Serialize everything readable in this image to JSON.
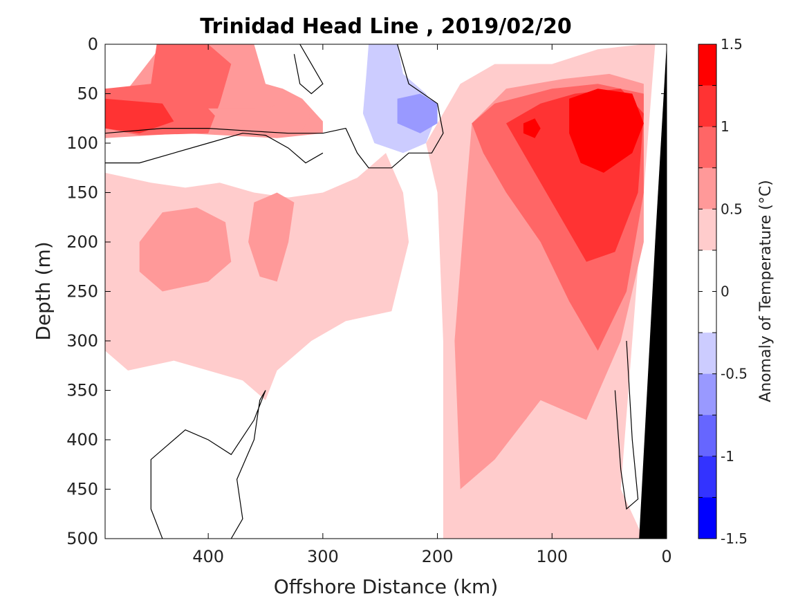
{
  "chart_data": {
    "type": "heatmap",
    "title": "Trinidad Head Line , 2019/02/20",
    "xlabel": "Offshore Distance (km)",
    "ylabel": "Depth (m)",
    "colorbar_label": "Anomaly of Temperature (°C)",
    "x_direction": "reversed",
    "y_direction": "reversed",
    "xlim": [
      0,
      490
    ],
    "ylim": [
      0,
      500
    ],
    "xticks": [
      400,
      300,
      200,
      100,
      0
    ],
    "xtick_labels": [
      "400",
      "300",
      "200",
      "100",
      "0"
    ],
    "yticks": [
      0,
      50,
      100,
      150,
      200,
      250,
      300,
      350,
      400,
      450,
      500
    ],
    "ytick_labels": [
      "0",
      "50",
      "100",
      "150",
      "200",
      "250",
      "300",
      "350",
      "400",
      "450",
      "500"
    ],
    "colorbar": {
      "range": [
        -1.5,
        1.5
      ],
      "step": 0.25,
      "tick_values": [
        1.5,
        1,
        0.5,
        0,
        -0.5,
        -1,
        -1.5
      ],
      "tick_labels": [
        "1.5",
        "1",
        "0.5",
        "0",
        "-0.5",
        "-1",
        "-1.5"
      ],
      "colors_high_to_low": [
        "#ff0000",
        "#ff3333",
        "#ff6666",
        "#ff9999",
        "#ffcccc",
        "#ffffff",
        "#ffffff",
        "#ccccff",
        "#9999ff",
        "#6666ff",
        "#3333ff",
        "#0000ff"
      ]
    },
    "bathymetry_color": "#000000",
    "contour_zero_color": "#000000",
    "regions": [
      {
        "level": 0.5,
        "label": "northwest shallow warm patch",
        "points": [
          [
            490,
            85
          ],
          [
            470,
            45
          ],
          [
            440,
            0
          ],
          [
            360,
            0
          ],
          [
            350,
            40
          ],
          [
            335,
            45
          ],
          [
            318,
            55
          ],
          [
            300,
            78
          ],
          [
            300,
            90
          ],
          [
            340,
            95
          ],
          [
            420,
            90
          ],
          [
            490,
            95
          ]
        ]
      },
      {
        "level": 0.75,
        "label": "northwest warm core",
        "points": [
          [
            490,
            85
          ],
          [
            490,
            45
          ],
          [
            450,
            40
          ],
          [
            445,
            0
          ],
          [
            400,
            0
          ],
          [
            380,
            20
          ],
          [
            390,
            60
          ],
          [
            400,
            90
          ],
          [
            460,
            92
          ]
        ]
      },
      {
        "level": 1.0,
        "label": "northwest peak",
        "points": [
          [
            490,
            85
          ],
          [
            490,
            55
          ],
          [
            440,
            60
          ],
          [
            430,
            78
          ],
          [
            460,
            90
          ]
        ]
      },
      {
        "level": 0.25,
        "label": "broad mid-depth warm layer",
        "points": [
          [
            490,
            130
          ],
          [
            450,
            140
          ],
          [
            420,
            145
          ],
          [
            390,
            140
          ],
          [
            360,
            150
          ],
          [
            330,
            155
          ],
          [
            300,
            150
          ],
          [
            270,
            135
          ],
          [
            245,
            110
          ],
          [
            230,
            150
          ],
          [
            225,
            200
          ],
          [
            240,
            270
          ],
          [
            280,
            280
          ],
          [
            310,
            300
          ],
          [
            340,
            330
          ],
          [
            350,
            360
          ],
          [
            370,
            340
          ],
          [
            400,
            330
          ],
          [
            430,
            320
          ],
          [
            470,
            330
          ],
          [
            490,
            310
          ]
        ]
      },
      {
        "level": 0.5,
        "label": "mid-depth warm blob west",
        "points": [
          [
            460,
            200
          ],
          [
            440,
            170
          ],
          [
            410,
            165
          ],
          [
            385,
            180
          ],
          [
            380,
            220
          ],
          [
            400,
            240
          ],
          [
            440,
            250
          ],
          [
            460,
            230
          ]
        ]
      },
      {
        "level": 0.5,
        "label": "mid-depth warm blob east",
        "points": [
          [
            360,
            160
          ],
          [
            340,
            150
          ],
          [
            325,
            160
          ],
          [
            330,
            200
          ],
          [
            340,
            240
          ],
          [
            355,
            235
          ],
          [
            365,
            200
          ]
        ]
      },
      {
        "level": 0.5,
        "label": "mid-shallow warm band",
        "points": [
          [
            400,
            65
          ],
          [
            360,
            65
          ],
          [
            330,
            60
          ],
          [
            310,
            72
          ],
          [
            320,
            90
          ],
          [
            380,
            90
          ]
        ]
      },
      {
        "level": -0.25,
        "label": "central cool lens",
        "points": [
          [
            260,
            0
          ],
          [
            235,
            0
          ],
          [
            230,
            30
          ],
          [
            210,
            50
          ],
          [
            200,
            70
          ],
          [
            210,
            100
          ],
          [
            230,
            110
          ],
          [
            255,
            100
          ],
          [
            265,
            70
          ],
          [
            262,
            30
          ]
        ]
      },
      {
        "level": -0.5,
        "label": "central cool core",
        "points": [
          [
            235,
            55
          ],
          [
            215,
            50
          ],
          [
            200,
            60
          ],
          [
            200,
            80
          ],
          [
            215,
            90
          ],
          [
            235,
            80
          ]
        ]
      },
      {
        "level": 0.25,
        "label": "eastern warm plume",
        "points": [
          [
            195,
            500
          ],
          [
            195,
            300
          ],
          [
            200,
            150
          ],
          [
            210,
            100
          ],
          [
            180,
            40
          ],
          [
            150,
            20
          ],
          [
            100,
            20
          ],
          [
            60,
            5
          ],
          [
            20,
            0
          ],
          [
            10,
            0
          ],
          [
            20,
            150
          ],
          [
            30,
            300
          ],
          [
            40,
            450
          ],
          [
            20,
            500
          ]
        ]
      },
      {
        "level": 0.5,
        "label": "eastern warm body",
        "points": [
          [
            180,
            450
          ],
          [
            185,
            300
          ],
          [
            175,
            150
          ],
          [
            170,
            80
          ],
          [
            140,
            45
          ],
          [
            90,
            35
          ],
          [
            50,
            30
          ],
          [
            20,
            40
          ],
          [
            20,
            200
          ],
          [
            40,
            300
          ],
          [
            70,
            380
          ],
          [
            110,
            360
          ],
          [
            150,
            420
          ]
        ]
      },
      {
        "level": 0.75,
        "label": "eastern warm core",
        "points": [
          [
            170,
            80
          ],
          [
            150,
            60
          ],
          [
            100,
            45
          ],
          [
            60,
            40
          ],
          [
            20,
            50
          ],
          [
            20,
            150
          ],
          [
            35,
            250
          ],
          [
            60,
            310
          ],
          [
            85,
            260
          ],
          [
            110,
            200
          ],
          [
            140,
            150
          ],
          [
            160,
            110
          ]
        ]
      },
      {
        "level": 1.0,
        "label": "eastern strong core",
        "points": [
          [
            140,
            80
          ],
          [
            110,
            60
          ],
          [
            80,
            50
          ],
          [
            40,
            45
          ],
          [
            20,
            70
          ],
          [
            25,
            150
          ],
          [
            45,
            210
          ],
          [
            70,
            220
          ],
          [
            95,
            170
          ],
          [
            120,
            120
          ]
        ]
      },
      {
        "level": 1.25,
        "label": "eastern peak",
        "points": [
          [
            85,
            55
          ],
          [
            60,
            45
          ],
          [
            30,
            50
          ],
          [
            20,
            80
          ],
          [
            30,
            110
          ],
          [
            55,
            130
          ],
          [
            75,
            120
          ],
          [
            85,
            90
          ]
        ]
      },
      {
        "level": 1.25,
        "label": "small eastern peak",
        "points": [
          [
            125,
            80
          ],
          [
            115,
            75
          ],
          [
            110,
            85
          ],
          [
            115,
            95
          ],
          [
            125,
            90
          ]
        ]
      }
    ],
    "zero_contours": [
      {
        "points": [
          [
            490,
            90
          ],
          [
            440,
            85
          ],
          [
            400,
            85
          ],
          [
            360,
            88
          ],
          [
            330,
            90
          ],
          [
            300,
            90
          ],
          [
            280,
            85
          ],
          [
            270,
            110
          ],
          [
            260,
            125
          ],
          [
            240,
            125
          ],
          [
            225,
            110
          ],
          [
            205,
            110
          ],
          [
            195,
            90
          ],
          [
            200,
            60
          ],
          [
            225,
            40
          ],
          [
            235,
            0
          ]
        ]
      },
      {
        "points": [
          [
            490,
            120
          ],
          [
            460,
            120
          ],
          [
            430,
            110
          ],
          [
            400,
            100
          ],
          [
            370,
            90
          ],
          [
            350,
            92
          ],
          [
            330,
            105
          ],
          [
            315,
            120
          ],
          [
            300,
            110
          ]
        ]
      },
      {
        "points": [
          [
            440,
            500
          ],
          [
            450,
            470
          ],
          [
            450,
            420
          ],
          [
            420,
            390
          ],
          [
            400,
            400
          ],
          [
            380,
            415
          ],
          [
            360,
            380
          ],
          [
            350,
            350
          ],
          [
            355,
            360
          ],
          [
            360,
            400
          ],
          [
            375,
            440
          ],
          [
            370,
            480
          ],
          [
            380,
            500
          ]
        ]
      },
      {
        "points": [
          [
            320,
            0
          ],
          [
            310,
            20
          ],
          [
            300,
            40
          ],
          [
            310,
            50
          ],
          [
            320,
            40
          ],
          [
            325,
            10
          ]
        ]
      },
      {
        "points": [
          [
            35,
            300
          ],
          [
            30,
            400
          ],
          [
            25,
            460
          ],
          [
            35,
            470
          ],
          [
            40,
            430
          ],
          [
            45,
            350
          ]
        ]
      }
    ]
  }
}
